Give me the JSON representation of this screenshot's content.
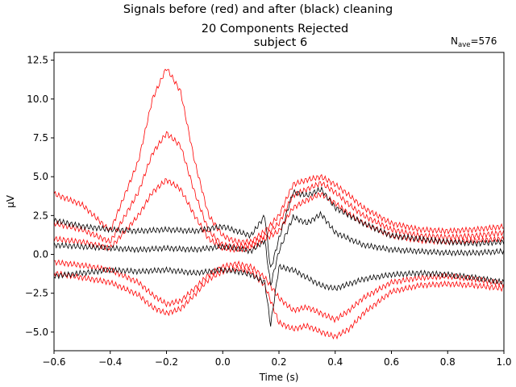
{
  "figure": {
    "suptitle": "Signals before (red) and after (black) cleaning",
    "title_line1": "20 Components Rejected",
    "title_line2": "subject 6",
    "nave_label": "N",
    "nave_sub": "ave",
    "nave_value": "=576"
  },
  "chart_data": {
    "type": "line",
    "xlabel": "Time (s)",
    "ylabel": "µV",
    "xlim": [
      -0.6,
      1.0
    ],
    "ylim": [
      -6.2,
      13.0
    ],
    "xticks": [
      -0.6,
      -0.4,
      -0.2,
      0.0,
      0.2,
      0.4,
      0.6,
      0.8,
      1.0
    ],
    "xtick_labels": [
      "−0.6",
      "−0.4",
      "−0.2",
      "0.0",
      "0.2",
      "0.4",
      "0.6",
      "0.8",
      "1.0"
    ],
    "yticks": [
      -5.0,
      -2.5,
      0.0,
      2.5,
      5.0,
      7.5,
      10.0,
      12.5
    ],
    "ytick_labels": [
      "−5.0",
      "−2.5",
      "0.0",
      "2.5",
      "5.0",
      "7.5",
      "10.0",
      "12.5"
    ],
    "grid": false,
    "colors": {
      "before": "#ff0000",
      "after": "#000000"
    },
    "series": [
      {
        "color": "#ff0000",
        "x": [
          -0.6,
          -0.5,
          -0.4,
          -0.3,
          -0.25,
          -0.2,
          -0.15,
          -0.1,
          -0.05,
          0.0,
          0.05,
          0.1,
          0.15,
          0.2,
          0.25,
          0.3,
          0.35,
          0.4,
          0.45,
          0.5,
          0.6,
          0.7,
          0.8,
          0.9,
          1.0
        ],
        "values": [
          3.9,
          3.2,
          1.5,
          6.0,
          10.0,
          12.0,
          10.5,
          6.0,
          2.5,
          1.2,
          0.8,
          0.8,
          1.5,
          2.5,
          4.5,
          4.8,
          5.0,
          4.5,
          3.8,
          3.0,
          2.0,
          1.6,
          1.5,
          1.6,
          1.8
        ]
      },
      {
        "color": "#ff0000",
        "x": [
          -0.6,
          -0.5,
          -0.4,
          -0.3,
          -0.25,
          -0.2,
          -0.15,
          -0.1,
          -0.05,
          0.0,
          0.05,
          0.1,
          0.15,
          0.2,
          0.25,
          0.3,
          0.35,
          0.4,
          0.45,
          0.5,
          0.6,
          0.7,
          0.8,
          0.9,
          1.0
        ],
        "values": [
          2.0,
          1.6,
          0.8,
          4.0,
          6.5,
          7.8,
          7.0,
          4.0,
          1.5,
          0.6,
          0.5,
          0.6,
          1.2,
          2.0,
          3.8,
          4.2,
          4.6,
          4.0,
          3.2,
          2.5,
          1.6,
          1.2,
          1.1,
          1.2,
          1.4
        ]
      },
      {
        "color": "#ff0000",
        "x": [
          -0.6,
          -0.5,
          -0.4,
          -0.3,
          -0.25,
          -0.2,
          -0.15,
          -0.1,
          -0.05,
          0.0,
          0.05,
          0.1,
          0.15,
          0.2,
          0.25,
          0.3,
          0.35,
          0.4,
          0.45,
          0.5,
          0.6,
          0.7,
          0.8,
          0.9,
          1.0
        ],
        "values": [
          1.0,
          0.8,
          0.4,
          2.5,
          4.0,
          4.8,
          4.2,
          2.5,
          1.0,
          0.4,
          0.3,
          0.4,
          1.0,
          1.5,
          3.0,
          3.5,
          3.9,
          3.3,
          2.6,
          2.0,
          1.2,
          0.9,
          0.8,
          0.9,
          1.0
        ]
      },
      {
        "color": "#ff0000",
        "x": [
          -0.6,
          -0.5,
          -0.4,
          -0.3,
          -0.25,
          -0.2,
          -0.15,
          -0.1,
          -0.05,
          0.0,
          0.05,
          0.1,
          0.15,
          0.2,
          0.25,
          0.3,
          0.35,
          0.4,
          0.45,
          0.5,
          0.6,
          0.7,
          0.8,
          0.9,
          1.0
        ],
        "values": [
          -0.5,
          -0.7,
          -1.0,
          -1.8,
          -2.6,
          -3.2,
          -3.0,
          -2.2,
          -1.3,
          -0.8,
          -0.6,
          -0.8,
          -1.5,
          -2.8,
          -3.6,
          -3.4,
          -3.8,
          -4.2,
          -3.6,
          -2.8,
          -1.8,
          -1.5,
          -1.4,
          -1.6,
          -1.9
        ]
      },
      {
        "color": "#ff0000",
        "x": [
          -0.6,
          -0.5,
          -0.4,
          -0.3,
          -0.25,
          -0.2,
          -0.15,
          -0.1,
          -0.05,
          0.0,
          0.05,
          0.1,
          0.15,
          0.2,
          0.25,
          0.3,
          0.35,
          0.4,
          0.45,
          0.5,
          0.6,
          0.7,
          0.8,
          0.9,
          1.0
        ],
        "values": [
          -1.2,
          -1.5,
          -1.8,
          -2.6,
          -3.4,
          -3.8,
          -3.5,
          -2.6,
          -1.6,
          -1.1,
          -0.9,
          -1.1,
          -2.0,
          -4.4,
          -4.8,
          -4.6,
          -5.0,
          -5.3,
          -4.8,
          -3.8,
          -2.4,
          -2.0,
          -1.9,
          -2.0,
          -2.2
        ]
      },
      {
        "color": "#000000",
        "x": [
          -0.6,
          -0.5,
          -0.4,
          -0.3,
          -0.2,
          -0.1,
          0.0,
          0.05,
          0.1,
          0.15,
          0.17,
          0.2,
          0.25,
          0.3,
          0.35,
          0.4,
          0.5,
          0.6,
          0.7,
          0.8,
          0.9,
          1.0
        ],
        "values": [
          2.2,
          1.8,
          1.6,
          1.5,
          1.6,
          1.5,
          1.8,
          1.5,
          1.2,
          2.5,
          -1.0,
          1.0,
          4.0,
          3.8,
          4.2,
          3.0,
          2.0,
          1.2,
          1.0,
          0.8,
          0.7,
          0.8
        ]
      },
      {
        "color": "#000000",
        "x": [
          -0.6,
          -0.5,
          -0.4,
          -0.3,
          -0.2,
          -0.1,
          0.0,
          0.05,
          0.1,
          0.15,
          0.17,
          0.2,
          0.25,
          0.3,
          0.35,
          0.4,
          0.5,
          0.6,
          0.7,
          0.8,
          0.9,
          1.0
        ],
        "values": [
          0.6,
          0.5,
          0.4,
          0.3,
          0.4,
          0.3,
          0.5,
          0.4,
          0.2,
          0.9,
          -2.0,
          0.2,
          2.4,
          2.0,
          2.6,
          1.4,
          0.6,
          0.3,
          0.2,
          0.1,
          0.1,
          0.2
        ]
      },
      {
        "color": "#000000",
        "x": [
          -0.6,
          -0.5,
          -0.4,
          -0.3,
          -0.2,
          -0.1,
          0.0,
          0.05,
          0.1,
          0.15,
          0.17,
          0.2,
          0.25,
          0.3,
          0.35,
          0.4,
          0.5,
          0.6,
          0.7,
          0.8,
          0.9,
          1.0
        ],
        "values": [
          -1.4,
          -1.2,
          -1.0,
          -1.1,
          -1.0,
          -1.2,
          -1.0,
          -1.1,
          -1.3,
          -1.8,
          -4.6,
          -0.8,
          -1.0,
          -1.5,
          -2.0,
          -2.2,
          -1.6,
          -1.3,
          -1.2,
          -1.3,
          -1.5,
          -1.8
        ]
      }
    ]
  }
}
